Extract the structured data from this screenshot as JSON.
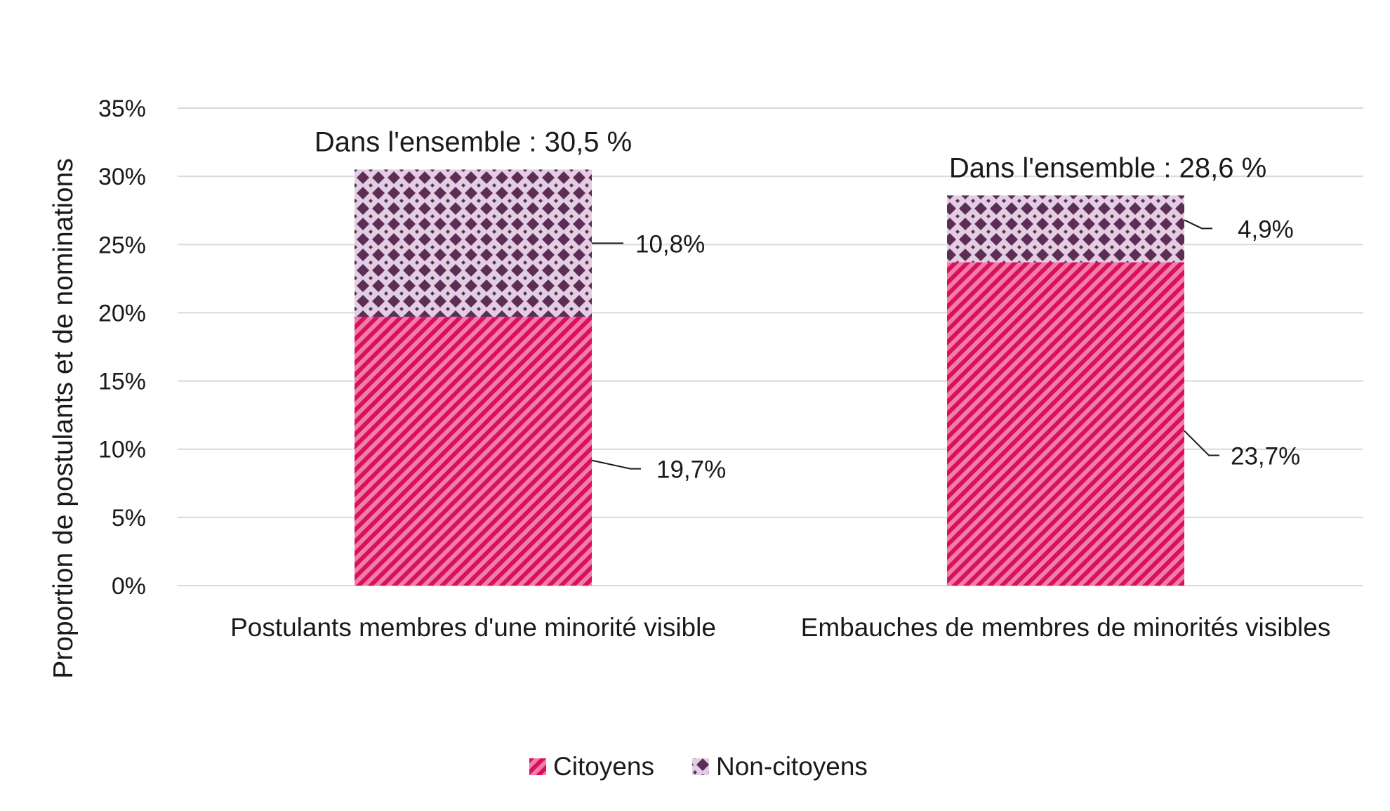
{
  "chart_data": {
    "type": "bar",
    "stacked": true,
    "ylabel": "Proportion de postulants et de nominations",
    "xlabel": "",
    "ylim": [
      0,
      35
    ],
    "yticks": [
      0,
      5,
      10,
      15,
      20,
      25,
      30,
      35
    ],
    "ytick_labels": [
      "0%",
      "5%",
      "10%",
      "15%",
      "20%",
      "25%",
      "30%",
      "35%"
    ],
    "categories": [
      "Postulants membres d'une minorité visible",
      "Embauches de membres de minorités visibles"
    ],
    "series": [
      {
        "name": "Citoyens",
        "values": [
          19.7,
          23.7
        ],
        "labels": [
          "19,7%",
          "23,7%"
        ],
        "color": "#d6125b",
        "color2": "#f47cab",
        "pattern": "diagonal-stripes"
      },
      {
        "name": "Non-citoyens",
        "values": [
          10.8,
          4.9
        ],
        "labels": [
          "10,8%",
          "4,9%"
        ],
        "color": "#5c2d57",
        "color2": "#e2cde3",
        "pattern": "diamond-dots"
      }
    ],
    "totals": [
      "Dans l'ensemble : 30,5 %",
      "Dans l'ensemble : 28,6 %"
    ],
    "grid": true,
    "legend_position": "bottom-center"
  }
}
